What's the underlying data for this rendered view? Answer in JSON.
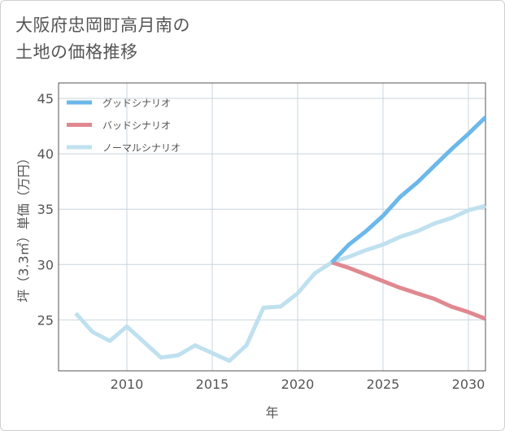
{
  "title_lines": [
    "大阪府忠岡町高月南の",
    "土地の価格推移"
  ],
  "chart_data": {
    "type": "line",
    "xlabel": "年",
    "ylabel": "坪（3.3㎡）単価（万円）",
    "xlim": [
      2006,
      2031
    ],
    "ylim": [
      20.4,
      46.4
    ],
    "x_ticks": [
      2010,
      2015,
      2020,
      2025,
      2030
    ],
    "y_ticks": [
      25,
      30,
      35,
      40,
      45
    ],
    "legend_position": "top-left",
    "grid": true,
    "series": [
      {
        "name": "グッドシナリオ",
        "color": "#6bb8ea",
        "x": [
          2022,
          2023,
          2024,
          2025,
          2026,
          2027,
          2028,
          2029,
          2030,
          2031
        ],
        "y": [
          30.2,
          31.8,
          33.0,
          34.4,
          36.1,
          37.4,
          38.9,
          40.4,
          41.8,
          43.3
        ]
      },
      {
        "name": "バッドシナリオ",
        "color": "#e08890",
        "x": [
          2022,
          2023,
          2024,
          2025,
          2026,
          2027,
          2028,
          2029,
          2030,
          2031
        ],
        "y": [
          30.2,
          29.7,
          29.1,
          28.5,
          27.9,
          27.4,
          26.9,
          26.2,
          25.7,
          25.1
        ]
      },
      {
        "name": "ノーマルシナリオ",
        "color": "#bfe0ef",
        "x": [
          2007,
          2008,
          2009,
          2010,
          2011,
          2012,
          2013,
          2014,
          2015,
          2016,
          2017,
          2018,
          2019,
          2020,
          2021,
          2022,
          2023,
          2024,
          2025,
          2026,
          2027,
          2028,
          2029,
          2030,
          2031
        ],
        "y": [
          25.6,
          23.9,
          23.1,
          24.4,
          23.0,
          21.6,
          21.8,
          22.7,
          22.0,
          21.3,
          22.7,
          26.1,
          26.2,
          27.4,
          29.2,
          30.2,
          30.7,
          31.3,
          31.8,
          32.5,
          33.0,
          33.7,
          34.2,
          34.9,
          35.3
        ]
      }
    ]
  }
}
